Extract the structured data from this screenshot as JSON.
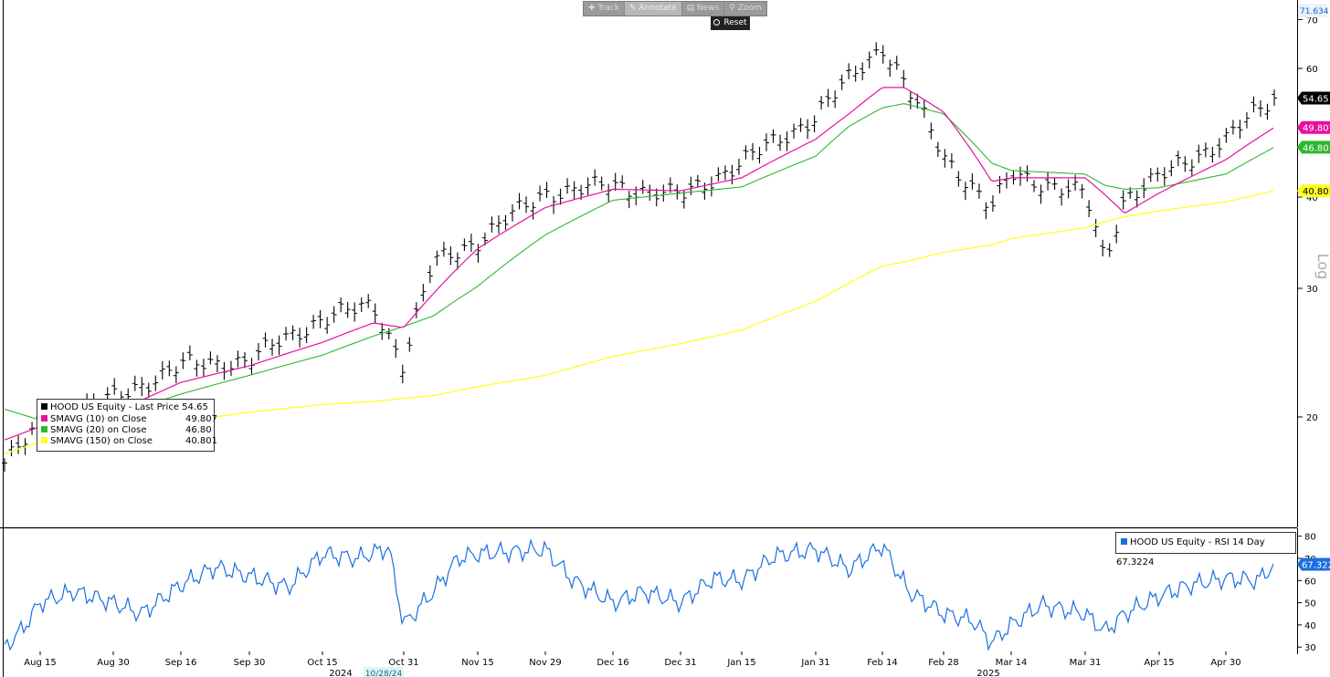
{
  "toolbar": {
    "buttons": [
      {
        "label": "Track",
        "icon": "plus-icon"
      },
      {
        "label": "Annotate",
        "icon": "pencil-icon"
      },
      {
        "label": "News",
        "icon": "news-icon"
      },
      {
        "label": "Zoom",
        "icon": "magnifier-icon"
      }
    ],
    "active": "Annotate",
    "reset_label": "Reset"
  },
  "legend": {
    "items": [
      {
        "label": "HOOD US Equity - Last Price",
        "value": "54.65",
        "color": "#000000"
      },
      {
        "label": "SMAVG (10)  on Close",
        "value": "49.807",
        "color": "#e6109f"
      },
      {
        "label": "SMAVG (20)  on Close",
        "value": "46.80",
        "color": "#2eb82e"
      },
      {
        "label": "SMAVG (150)  on Close",
        "value": "40.801",
        "color": "#ffff22"
      }
    ]
  },
  "rsi_legend": {
    "label": "HOOD US Equity - RSI 14 Day",
    "value": "67.3224",
    "color": "#1a6fe0"
  },
  "price_axis": {
    "ticks": [
      "70",
      "60",
      "40",
      "30",
      "20"
    ],
    "top_label": "71.634",
    "scale_label": "Log",
    "value_labels": [
      {
        "text": "54.65",
        "bg": "#000000",
        "fg": "#ffffff"
      },
      {
        "text": "49.807",
        "bg": "#e6109f",
        "fg": "#ffffff"
      },
      {
        "text": "46.80",
        "bg": "#2eb82e",
        "fg": "#ffffff"
      },
      {
        "text": "40.801",
        "bg": "#ffff22",
        "fg": "#000000"
      }
    ]
  },
  "rsi_axis": {
    "ticks": [
      "80",
      "70",
      "60",
      "50",
      "40",
      "30"
    ],
    "value_label": "67.322"
  },
  "x_axis": {
    "ticks": [
      "Aug 15",
      "Aug 30",
      "Sep 16",
      "Sep 30",
      "Oct 15",
      "Oct 31",
      "Nov 15",
      "Nov 29",
      "Dec 16",
      "Dec 31",
      "Jan 15",
      "Jan 31",
      "Feb 14",
      "Feb 28",
      "Mar 14",
      "Mar 31",
      "Apr 15",
      "Apr 30"
    ],
    "years": [
      "2024",
      "2025"
    ],
    "cursor_date": "10/28/24"
  },
  "colors": {
    "price": "#000000",
    "sma10": "#e6109f",
    "sma20": "#2eb82e",
    "sma150": "#ffff22",
    "rsi": "#1a6fe0"
  },
  "chart_data": [
    {
      "type": "line",
      "title": "HOOD US Equity",
      "scale": "log",
      "ylim": [
        17,
        71.634
      ],
      "x": [
        "Aug 1",
        "Aug 15",
        "Aug 30",
        "Sep 16",
        "Sep 30",
        "Oct 15",
        "Oct 25",
        "Oct 31",
        "Nov 6",
        "Nov 15",
        "Nov 29",
        "Dec 16",
        "Dec 31",
        "Jan 15",
        "Jan 31",
        "Feb 7",
        "Feb 14",
        "Feb 19",
        "Feb 28",
        "Mar 10",
        "Mar 14",
        "Mar 31",
        "Apr 4",
        "Apr 8",
        "Apr 15",
        "Apr 30",
        "May 9"
      ],
      "series": [
        {
          "name": "HOOD US Equity - Last Price",
          "values": [
            17.3,
            19.4,
            21.2,
            23.5,
            23.9,
            27.3,
            28.4,
            23.5,
            32.5,
            34.8,
            40.5,
            41.5,
            40.1,
            44.5,
            51.5,
            58.0,
            64.5,
            57.2,
            45.5,
            38.5,
            43.0,
            40.3,
            32.5,
            40.0,
            42.5,
            48.0,
            54.65
          ]
        },
        {
          "name": "SMAVG (10)  on Close",
          "values": [
            18.6,
            19.4,
            20.2,
            22.3,
            23.5,
            25.3,
            26.9,
            26.5,
            29.5,
            34.0,
            38.7,
            41.0,
            40.8,
            42.5,
            48.0,
            52.0,
            56.5,
            56.5,
            52.3,
            42.0,
            42.5,
            42.5,
            40.3,
            38.0,
            40.5,
            45.0,
            49.807
          ]
        },
        {
          "name": "SMAVG (20)  on Close",
          "values": [
            20.5,
            19.8,
            20.0,
            21.5,
            22.8,
            24.3,
            25.8,
            26.6,
            27.5,
            30.2,
            35.5,
            39.6,
            40.5,
            41.3,
            45.5,
            50.0,
            53.0,
            53.7,
            52.0,
            44.5,
            43.5,
            43.0,
            41.5,
            41.0,
            41.2,
            43.0,
            46.8
          ]
        },
        {
          "name": "SMAVG (150)  on Close",
          "values": [
            17.8,
            18.5,
            19.0,
            19.7,
            20.3,
            20.8,
            21.0,
            21.2,
            21.4,
            22.0,
            22.8,
            24.2,
            25.2,
            26.3,
            28.8,
            30.5,
            32.2,
            32.6,
            33.6,
            34.4,
            35.1,
            36.3,
            37.0,
            37.6,
            38.3,
            39.4,
            40.801
          ]
        }
      ]
    },
    {
      "type": "line",
      "title": "HOOD US Equity - RSI 14 Day",
      "ylim": [
        27,
        82
      ],
      "x": [
        "Aug 1",
        "Aug 8",
        "Aug 15",
        "Aug 22",
        "Aug 30",
        "Sep 6",
        "Sep 16",
        "Sep 23",
        "Sep 30",
        "Oct 8",
        "Oct 15",
        "Oct 22",
        "Oct 28",
        "Oct 31",
        "Nov 6",
        "Nov 11",
        "Nov 15",
        "Nov 22",
        "Nov 29",
        "Dec 6",
        "Dec 16",
        "Dec 23",
        "Dec 31",
        "Jan 8",
        "Jan 15",
        "Jan 22",
        "Jan 31",
        "Feb 7",
        "Feb 14",
        "Feb 20",
        "Feb 28",
        "Mar 6",
        "Mar 10",
        "Mar 14",
        "Mar 21",
        "Mar 31",
        "Apr 4",
        "Apr 8",
        "Apr 15",
        "Apr 22",
        "Apr 30",
        "May 6",
        "May 9"
      ],
      "values": [
        30,
        38,
        50,
        55,
        50,
        45,
        58,
        66,
        62,
        57,
        72,
        70,
        75,
        40,
        55,
        70,
        72,
        73,
        74,
        60,
        50,
        55,
        50,
        61,
        60,
        71,
        74,
        65,
        76,
        55,
        45,
        42,
        32,
        40,
        49,
        45,
        37,
        45,
        53,
        58,
        61,
        60,
        67.3224
      ]
    }
  ]
}
